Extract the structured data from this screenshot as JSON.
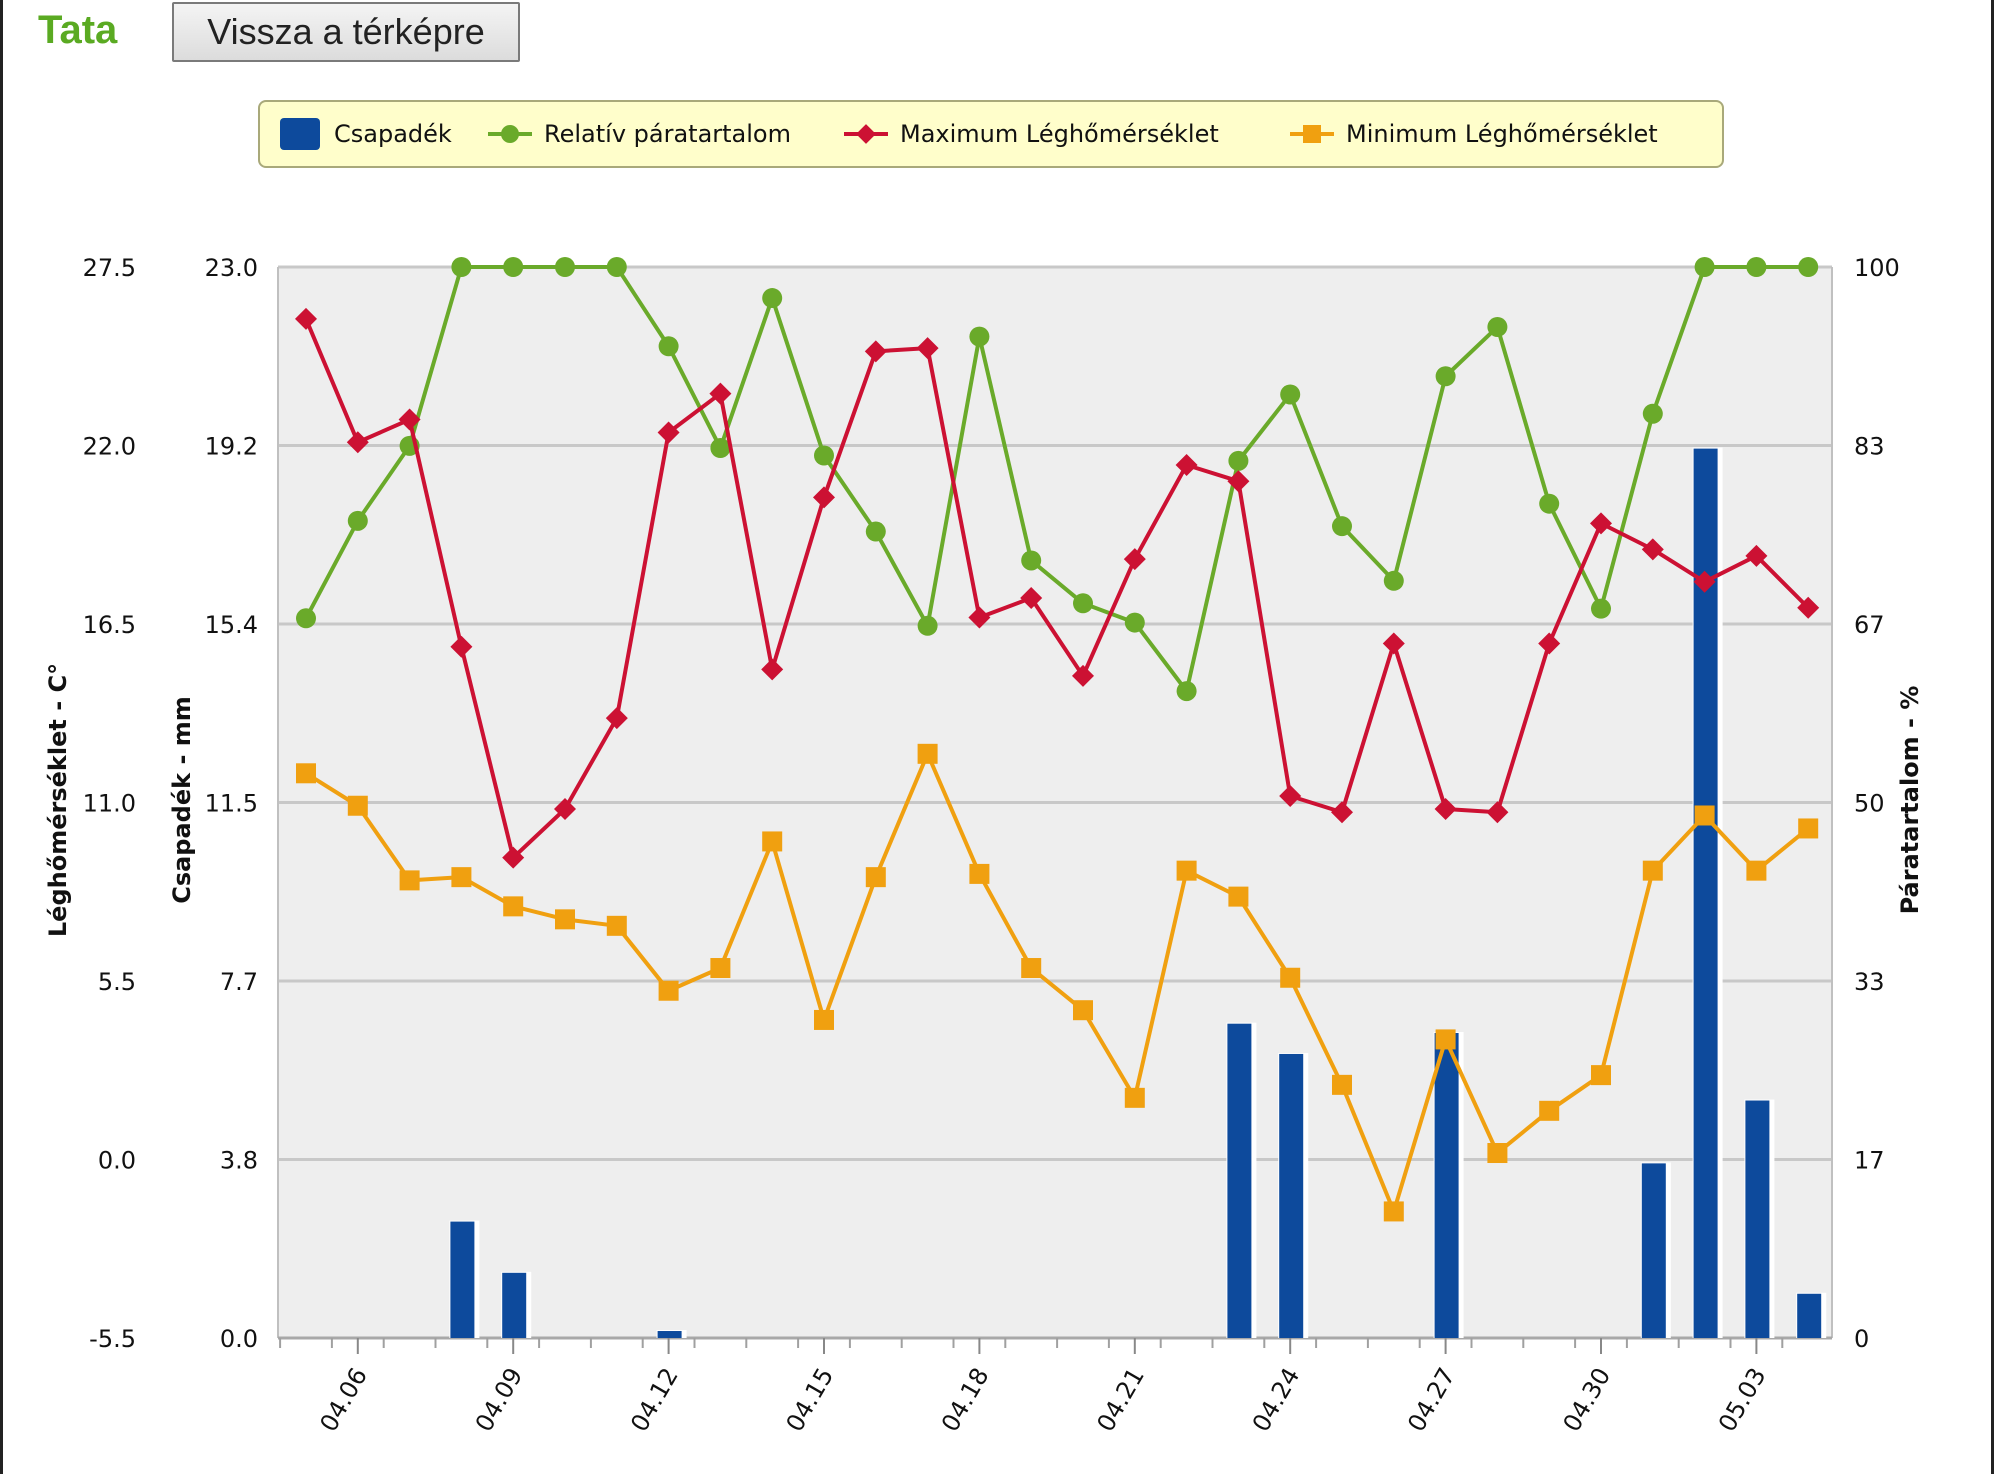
{
  "header": {
    "station": "Tata",
    "back_button": "Vissza a térképre"
  },
  "colors": {
    "precip": "#0d4a9c",
    "humidity": "#6aaa2a",
    "tmax": "#cc1133",
    "tmin": "#f0a010",
    "plot_bg": "#eeeeee",
    "grid": "#c8c8c8",
    "legend_bg": "#fffecb"
  },
  "legend": {
    "items": [
      {
        "key": "precip",
        "label": "Csapadék",
        "marker": "bar"
      },
      {
        "key": "humidity",
        "label": "Relatív páratartalom",
        "marker": "circle"
      },
      {
        "key": "tmax",
        "label": "Maximum Léghőmérséklet",
        "marker": "diamond"
      },
      {
        "key": "tmin",
        "label": "Minimum Léghőmérséklet",
        "marker": "square"
      }
    ]
  },
  "chart_data": {
    "type": "line",
    "x": [
      "04.05",
      "04.06",
      "04.07",
      "04.08",
      "04.09",
      "04.10",
      "04.11",
      "04.12",
      "04.13",
      "04.14",
      "04.15",
      "04.16",
      "04.17",
      "04.18",
      "04.19",
      "04.20",
      "04.21",
      "04.22",
      "04.23",
      "04.24",
      "04.25",
      "04.26",
      "04.27",
      "04.28",
      "04.29",
      "04.30",
      "05.01",
      "05.02",
      "05.03",
      "05.04"
    ],
    "x_tick_labels": [
      "04.06",
      "04.09",
      "04.12",
      "04.15",
      "04.18",
      "04.21",
      "04.24",
      "04.27",
      "04.30",
      "05.03"
    ],
    "grid": true,
    "legend_position": "top",
    "axes": {
      "temperature": {
        "label": "Léghőmérséklet - C°",
        "range": [
          -5.5,
          27.5
        ],
        "ticks": [
          "27.5",
          "22.0",
          "16.5",
          "11.0",
          "5.5",
          "0.0",
          "-5.5"
        ]
      },
      "precipitation": {
        "label": "Csapadék - mm",
        "range": [
          0,
          23.0
        ],
        "ticks": [
          "23.0",
          "19.2",
          "15.4",
          "11.5",
          "7.7",
          "3.8",
          "0.0"
        ]
      },
      "humidity": {
        "label": "Páratartalom - %",
        "range": [
          0,
          100
        ],
        "ticks": [
          "100",
          "83",
          "67",
          "50",
          "33",
          "17",
          "0"
        ]
      }
    },
    "series": [
      {
        "key": "precip",
        "name": "Csapadék",
        "type": "bar",
        "axis": "precipitation",
        "values": [
          0,
          0,
          0,
          2.5,
          1.4,
          0,
          0,
          0.15,
          0,
          0,
          0,
          0,
          0,
          0,
          0,
          0,
          0,
          0,
          6.75,
          6.1,
          0,
          0,
          6.55,
          0,
          0,
          0,
          3.75,
          19.1,
          5.1,
          0.95
        ]
      },
      {
        "key": "humidity",
        "name": "Relatív páratartalom",
        "type": "line",
        "marker": "circle",
        "axis": "humidity",
        "values": [
          67.2,
          76.3,
          83.3,
          100,
          100,
          100,
          100,
          92.6,
          83.1,
          97.1,
          82.4,
          75.3,
          66.5,
          93.5,
          72.6,
          68.6,
          66.8,
          60.4,
          81.9,
          88.1,
          75.8,
          70.7,
          89.8,
          94.4,
          77.9,
          68.1,
          86.3,
          100,
          100,
          100
        ]
      },
      {
        "key": "tmax",
        "name": "Maximum Léghőmérséklet",
        "type": "line",
        "marker": "diamond",
        "axis": "temperature",
        "values": [
          25.9,
          22.1,
          22.8,
          15.8,
          9.3,
          10.8,
          13.6,
          22.4,
          23.6,
          15.1,
          20.4,
          24.9,
          25.0,
          16.7,
          17.3,
          14.9,
          18.5,
          21.4,
          20.9,
          11.2,
          10.7,
          15.9,
          10.8,
          10.7,
          15.9,
          19.6,
          18.8,
          17.8,
          18.6,
          17.0
        ]
      },
      {
        "key": "tmin",
        "name": "Minimum Léghőmérséklet",
        "type": "line",
        "marker": "square",
        "axis": "temperature",
        "values": [
          11.9,
          10.9,
          8.6,
          8.7,
          7.8,
          7.4,
          7.2,
          5.2,
          5.9,
          9.8,
          4.3,
          8.7,
          12.5,
          8.8,
          5.9,
          4.6,
          1.9,
          8.9,
          8.1,
          5.6,
          2.3,
          -1.6,
          3.7,
          0.2,
          1.5,
          2.6,
          8.9,
          10.6,
          8.9,
          10.2
        ]
      }
    ]
  }
}
